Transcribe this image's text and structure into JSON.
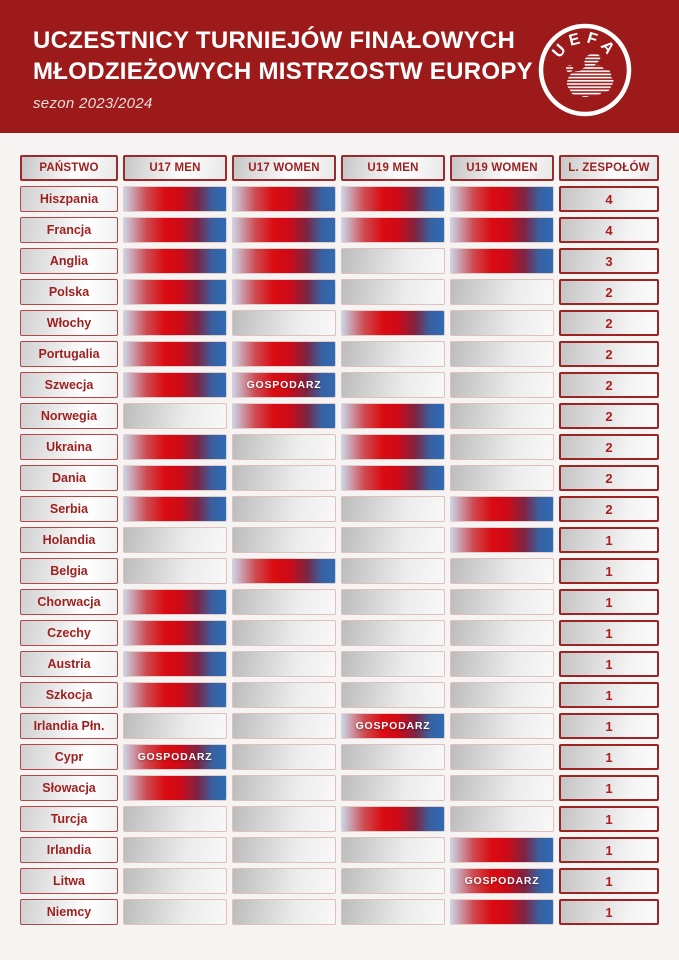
{
  "header": {
    "title_line1": "UCZESTNICY TURNIEJÓW FINAŁOWYCH",
    "title_line2": "MŁODZIEŻOWYCH MISTRZOSTW EUROPY",
    "subtitle": "sezon 2023/2024",
    "logo_text": "UEFA"
  },
  "colors": {
    "banner_red": "#9d1a1a",
    "accent_red": "#9e1f1f",
    "gradient_red": "#da0c11",
    "gradient_blue": "#2d6cb6",
    "page_bg": "#f6f4f2"
  },
  "table": {
    "columns": [
      "PAŃSTWO",
      "U17 MEN",
      "U17 WOMEN",
      "U19 MEN",
      "U19 WOMEN",
      "L. ZESPOŁÓW"
    ],
    "host_label": "GOSPODARZ"
  },
  "chart_data": {
    "type": "table",
    "title": "Uczestnicy turniejów finałowych młodzieżowych mistrzostw Europy — sezon 2023/2024",
    "columns": [
      "PAŃSTWO",
      "U17 MEN",
      "U17 WOMEN",
      "U19 MEN",
      "U19 WOMEN",
      "L. ZESPOŁÓW"
    ],
    "rows": [
      {
        "country": "Hiszpania",
        "u17_men": "yes",
        "u17_women": "yes",
        "u19_men": "yes",
        "u19_women": "yes",
        "total": 4
      },
      {
        "country": "Francja",
        "u17_men": "yes",
        "u17_women": "yes",
        "u19_men": "yes",
        "u19_women": "yes",
        "total": 4
      },
      {
        "country": "Anglia",
        "u17_men": "yes",
        "u17_women": "yes",
        "u19_men": "no",
        "u19_women": "yes",
        "total": 3
      },
      {
        "country": "Polska",
        "u17_men": "yes",
        "u17_women": "yes",
        "u19_men": "no",
        "u19_women": "no",
        "total": 2
      },
      {
        "country": "Włochy",
        "u17_men": "yes",
        "u17_women": "no",
        "u19_men": "yes",
        "u19_women": "no",
        "total": 2
      },
      {
        "country": "Portugalia",
        "u17_men": "yes",
        "u17_women": "yes",
        "u19_men": "no",
        "u19_women": "no",
        "total": 2
      },
      {
        "country": "Szwecja",
        "u17_men": "yes",
        "u17_women": "host",
        "u19_men": "no",
        "u19_women": "no",
        "total": 2
      },
      {
        "country": "Norwegia",
        "u17_men": "no",
        "u17_women": "yes",
        "u19_men": "yes",
        "u19_women": "no",
        "total": 2
      },
      {
        "country": "Ukraina",
        "u17_men": "yes",
        "u17_women": "no",
        "u19_men": "yes",
        "u19_women": "no",
        "total": 2
      },
      {
        "country": "Dania",
        "u17_men": "yes",
        "u17_women": "no",
        "u19_men": "yes",
        "u19_women": "no",
        "total": 2
      },
      {
        "country": "Serbia",
        "u17_men": "yes",
        "u17_women": "no",
        "u19_men": "no",
        "u19_women": "yes",
        "total": 2
      },
      {
        "country": "Holandia",
        "u17_men": "no",
        "u17_women": "no",
        "u19_men": "no",
        "u19_women": "yes",
        "total": 1
      },
      {
        "country": "Belgia",
        "u17_men": "no",
        "u17_women": "yes",
        "u19_men": "no",
        "u19_women": "no",
        "total": 1
      },
      {
        "country": "Chorwacja",
        "u17_men": "yes",
        "u17_women": "no",
        "u19_men": "no",
        "u19_women": "no",
        "total": 1
      },
      {
        "country": "Czechy",
        "u17_men": "yes",
        "u17_women": "no",
        "u19_men": "no",
        "u19_women": "no",
        "total": 1
      },
      {
        "country": "Austria",
        "u17_men": "yes",
        "u17_women": "no",
        "u19_men": "no",
        "u19_women": "no",
        "total": 1
      },
      {
        "country": "Szkocja",
        "u17_men": "yes",
        "u17_women": "no",
        "u19_men": "no",
        "u19_women": "no",
        "total": 1
      },
      {
        "country": "Irlandia Płn.",
        "u17_men": "no",
        "u17_women": "no",
        "u19_men": "host",
        "u19_women": "no",
        "total": 1
      },
      {
        "country": "Cypr",
        "u17_men": "host",
        "u17_women": "no",
        "u19_men": "no",
        "u19_women": "no",
        "total": 1
      },
      {
        "country": "Słowacja",
        "u17_men": "yes",
        "u17_women": "no",
        "u19_men": "no",
        "u19_women": "no",
        "total": 1
      },
      {
        "country": "Turcja",
        "u17_men": "no",
        "u17_women": "no",
        "u19_men": "yes",
        "u19_women": "no",
        "total": 1
      },
      {
        "country": "Irlandia",
        "u17_men": "no",
        "u17_women": "no",
        "u19_men": "no",
        "u19_women": "yes",
        "total": 1
      },
      {
        "country": "Litwa",
        "u17_men": "no",
        "u17_women": "no",
        "u19_men": "no",
        "u19_women": "host",
        "total": 1
      },
      {
        "country": "Niemcy",
        "u17_men": "no",
        "u17_women": "no",
        "u19_men": "no",
        "u19_women": "yes",
        "total": 1
      }
    ]
  }
}
